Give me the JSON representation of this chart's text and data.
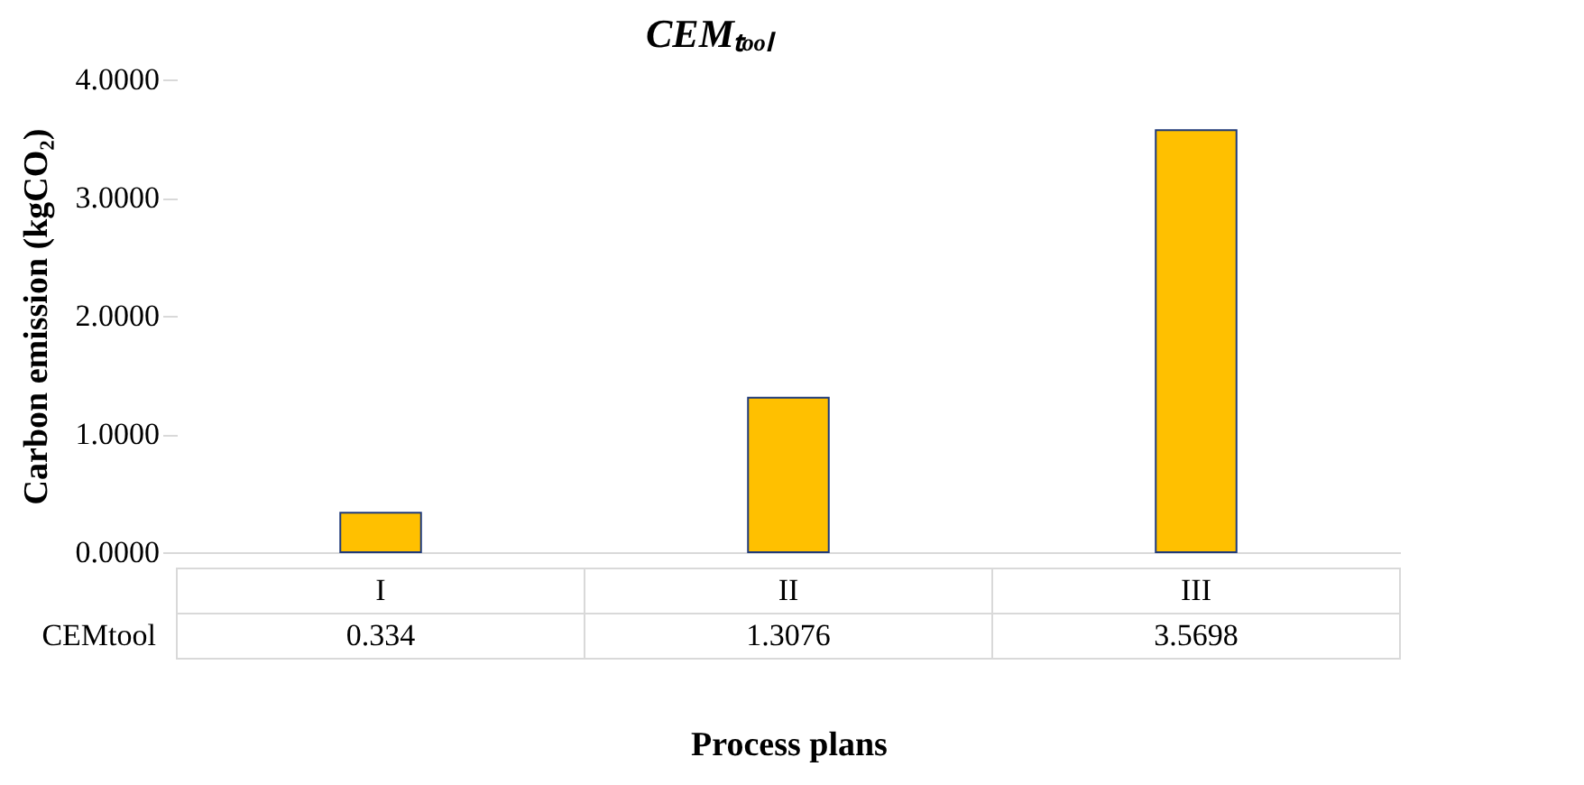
{
  "chart_data": {
    "type": "bar",
    "title": "CEMₜₒₒₗ",
    "ylabel": "Carbon emission (kgCO₂)",
    "xlabel": "Process plans",
    "categories": [
      "I",
      "II",
      "III"
    ],
    "series": [
      {
        "name": "CEMtool",
        "color": "#ffc000",
        "values": [
          0.334,
          1.3076,
          3.5698
        ]
      }
    ],
    "ylim": [
      0,
      4
    ],
    "yticks": [
      {
        "value": 0,
        "label": "0.0000"
      },
      {
        "value": 1,
        "label": "1.0000"
      },
      {
        "value": 2,
        "label": "2.0000"
      },
      {
        "value": 3,
        "label": "3.0000"
      },
      {
        "value": 4,
        "label": "4.0000"
      }
    ],
    "grid": false,
    "legend": false,
    "data_labels": true
  }
}
